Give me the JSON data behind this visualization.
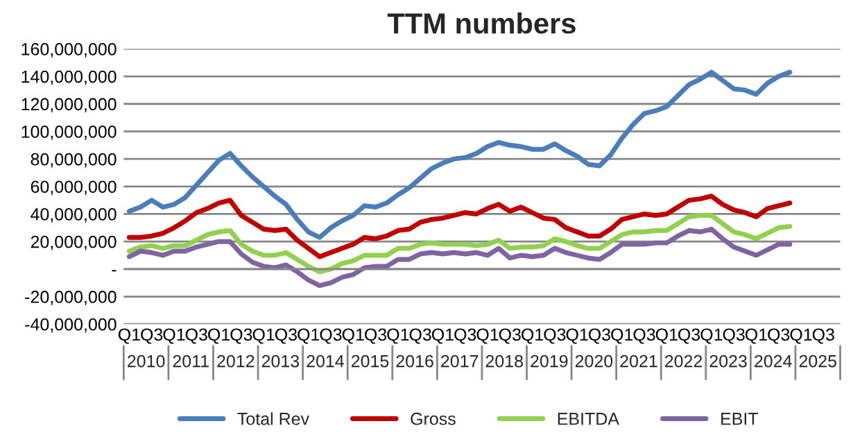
{
  "chart_data": {
    "type": "line",
    "title": "TTM numbers",
    "categories": [
      "Q1",
      null,
      "Q3",
      null,
      "Q1",
      null,
      "Q3",
      null,
      "Q1",
      null,
      "Q3",
      null,
      "Q1",
      null,
      "Q3",
      null,
      "Q1",
      null,
      "Q3",
      null,
      "Q1",
      null,
      "Q3",
      null,
      "Q1",
      null,
      "Q3",
      null,
      "Q1",
      null,
      "Q3",
      null,
      "Q1",
      null,
      "Q3",
      null,
      "Q1",
      null,
      "Q3",
      null,
      "Q1",
      null,
      "Q3",
      null,
      "Q1",
      null,
      "Q3",
      null,
      "Q1",
      null,
      "Q3",
      null,
      "Q1",
      null,
      "Q3",
      null,
      "Q1",
      null,
      "Q3",
      null,
      "Q1",
      null,
      "Q3",
      null
    ],
    "annotations": [
      "2010",
      "2011",
      "2012",
      "2013",
      "2014",
      "2015",
      "2016",
      "2017",
      "2018",
      "2019",
      "2020",
      "2021",
      "2022",
      "2023",
      "2024",
      "2025"
    ],
    "series": [
      {
        "name": "Total Rev",
        "color": "#4a7ebb",
        "values": [
          42000000,
          45000000,
          50000000,
          45000000,
          47000000,
          52000000,
          61000000,
          70000000,
          79000000,
          84000000,
          75000000,
          67000000,
          60000000,
          53000000,
          47000000,
          36000000,
          27000000,
          23000000,
          30000000,
          35000000,
          39000000,
          46000000,
          45000000,
          48000000,
          54000000,
          59000000,
          66000000,
          73000000,
          77000000,
          80000000,
          81000000,
          84000000,
          89000000,
          92000000,
          90000000,
          89000000,
          87000000,
          87000000,
          91000000,
          86000000,
          82000000,
          76000000,
          75000000,
          83000000,
          95000000,
          105000000,
          113000000,
          115000000,
          118000000,
          126000000,
          134000000,
          138000000,
          143000000,
          137000000,
          131000000,
          130000000,
          127000000,
          135000000,
          140000000,
          143000000,
          null,
          null,
          null,
          null
        ]
      },
      {
        "name": "Gross",
        "color": "#c00000",
        "values": [
          23000000,
          23000000,
          24000000,
          26000000,
          30000000,
          35000000,
          41000000,
          44000000,
          48000000,
          50000000,
          39000000,
          34000000,
          29000000,
          28000000,
          29000000,
          21000000,
          15000000,
          9000000,
          12000000,
          15000000,
          18000000,
          23000000,
          22000000,
          24000000,
          28000000,
          29000000,
          34000000,
          36000000,
          37000000,
          39000000,
          41000000,
          40000000,
          44000000,
          47000000,
          42000000,
          45000000,
          41000000,
          37000000,
          36000000,
          30000000,
          27000000,
          24000000,
          24000000,
          29000000,
          36000000,
          38000000,
          40000000,
          39000000,
          40000000,
          45000000,
          50000000,
          51000000,
          53000000,
          47000000,
          43000000,
          41000000,
          38000000,
          44000000,
          46000000,
          48000000,
          null,
          null,
          null,
          null
        ]
      },
      {
        "name": "EBITDA",
        "color": "#92d050",
        "values": [
          13000000,
          16000000,
          17000000,
          15000000,
          17000000,
          17000000,
          21000000,
          25000000,
          27000000,
          28000000,
          18000000,
          13000000,
          10000000,
          10000000,
          12000000,
          7000000,
          2000000,
          -2000000,
          0,
          4000000,
          6000000,
          10000000,
          10000000,
          10000000,
          15000000,
          15000000,
          18000000,
          19000000,
          18000000,
          18000000,
          18000000,
          17000000,
          18000000,
          21000000,
          15000000,
          16000000,
          16000000,
          17000000,
          22000000,
          20000000,
          17000000,
          15000000,
          15000000,
          20000000,
          25000000,
          27000000,
          27000000,
          28000000,
          28000000,
          33000000,
          38000000,
          39000000,
          39000000,
          33000000,
          27000000,
          25000000,
          22000000,
          26000000,
          30000000,
          31000000,
          null,
          null,
          null,
          null
        ]
      },
      {
        "name": "EBIT",
        "color": "#8064a2",
        "values": [
          9000000,
          13000000,
          12000000,
          10000000,
          13000000,
          13000000,
          16000000,
          18000000,
          20000000,
          20000000,
          11000000,
          5000000,
          2000000,
          1000000,
          3000000,
          -2000000,
          -8000000,
          -12000000,
          -10000000,
          -6000000,
          -4000000,
          1000000,
          2000000,
          2000000,
          7000000,
          7000000,
          11000000,
          12000000,
          11000000,
          12000000,
          11000000,
          12000000,
          10000000,
          15000000,
          8000000,
          10000000,
          9000000,
          10000000,
          15000000,
          12000000,
          10000000,
          8000000,
          7000000,
          12000000,
          18000000,
          18000000,
          18000000,
          19000000,
          19000000,
          24000000,
          28000000,
          27000000,
          29000000,
          22000000,
          16000000,
          13000000,
          10000000,
          14000000,
          18000000,
          18000000,
          null,
          null,
          null,
          null
        ]
      }
    ],
    "ylim": [
      -40000000,
      160000000
    ],
    "yticks": [
      {
        "value": -40000000,
        "label": "-40,000,000"
      },
      {
        "value": -20000000,
        "label": "-20,000,000"
      },
      {
        "value": 0,
        "label": "-"
      },
      {
        "value": 20000000,
        "label": "20,000,000"
      },
      {
        "value": 40000000,
        "label": "40,000,000"
      },
      {
        "value": 60000000,
        "label": "60,000,000"
      },
      {
        "value": 80000000,
        "label": "80,000,000"
      },
      {
        "value": 100000000,
        "label": "100,000,000"
      },
      {
        "value": 120000000,
        "label": "120,000,000"
      },
      {
        "value": 140000000,
        "label": "140,000,000"
      },
      {
        "value": 160000000,
        "label": "160,000,000"
      }
    ],
    "grid": "y",
    "legend": "bottom",
    "marker": "none",
    "line_style": "solid"
  }
}
